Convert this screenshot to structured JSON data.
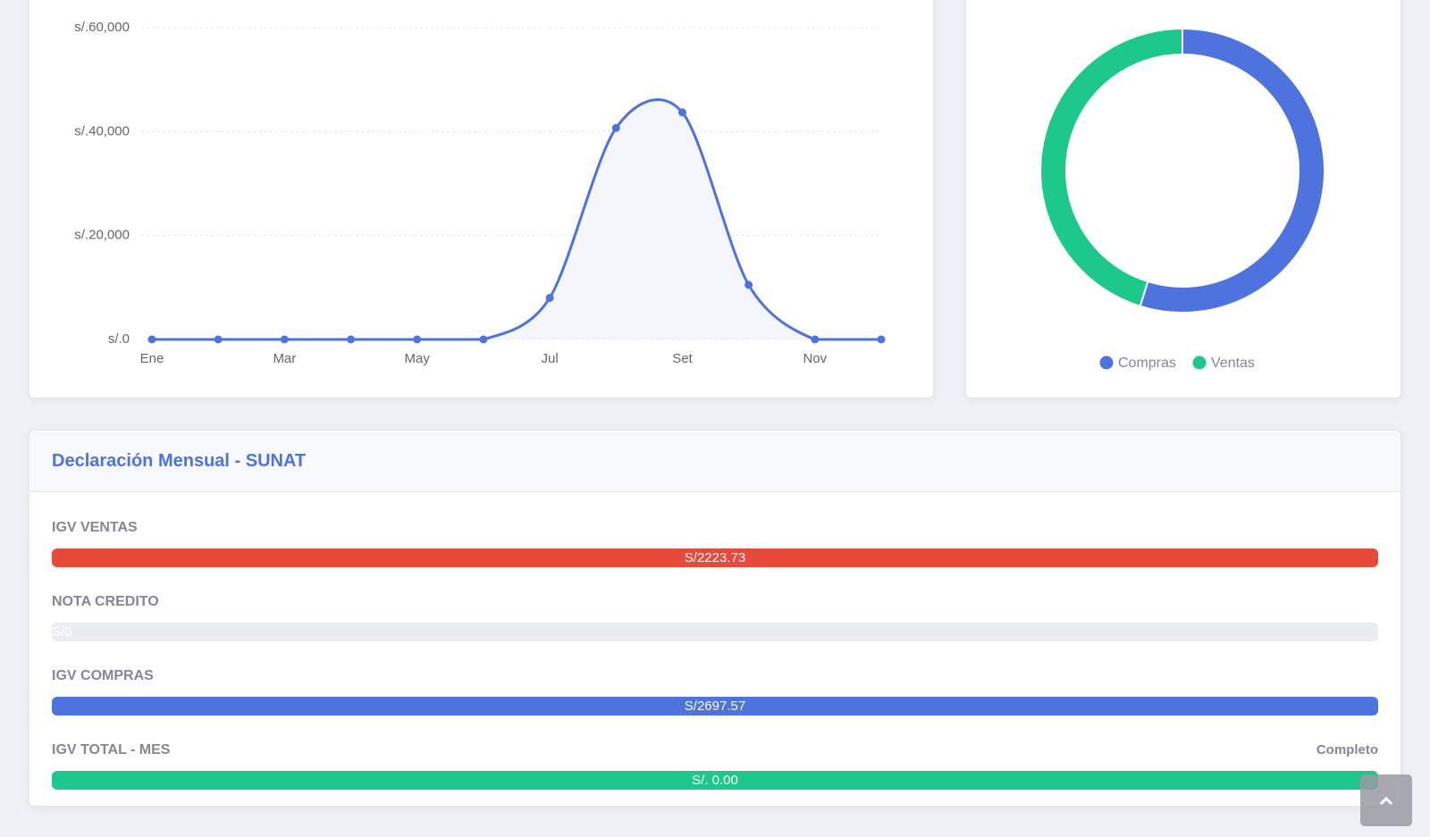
{
  "chart_data": [
    {
      "type": "line",
      "categories": [
        "Ene",
        null,
        "Mar",
        null,
        "May",
        null,
        "Jul",
        null,
        "Set",
        null,
        "Nov",
        null
      ],
      "values": [
        0,
        0,
        0,
        0,
        0,
        0,
        8000,
        40700,
        43700,
        10500,
        0,
        0
      ],
      "color": "#4e73df",
      "ylim": [
        0,
        60000
      ],
      "yticks": [
        {
          "value": 0,
          "label": "s/.0"
        },
        {
          "value": 20000,
          "label": "s/.20,000"
        },
        {
          "value": 40000,
          "label": "s/.40,000"
        },
        {
          "value": 60000,
          "label": "s/.60,000"
        }
      ],
      "grid": true
    },
    {
      "type": "doughnut",
      "categories": [
        "Compras",
        "Ventas"
      ],
      "values": [
        2697.57,
        2223.73
      ],
      "colors": [
        "#4e73df",
        "#1cc88a"
      ],
      "legend": "bottom"
    }
  ],
  "panel": {
    "title": "Declaración Mensual - SUNAT",
    "rows": [
      {
        "label": "IGV VENTAS",
        "value_label": "S/2223.73",
        "percent": 100,
        "color": "#e74a3b"
      },
      {
        "label": "NOTA CREDITO",
        "value_label": "S/0",
        "percent": 0,
        "color": "#e74a3b"
      },
      {
        "label": "IGV COMPRAS",
        "value_label": "S/2697.57",
        "percent": 100,
        "color": "#4e73df"
      },
      {
        "label": "IGV TOTAL - MES",
        "value_label": "S/. 0.00",
        "percent": 100,
        "color": "#1cc88a",
        "status": "Completo"
      }
    ]
  }
}
